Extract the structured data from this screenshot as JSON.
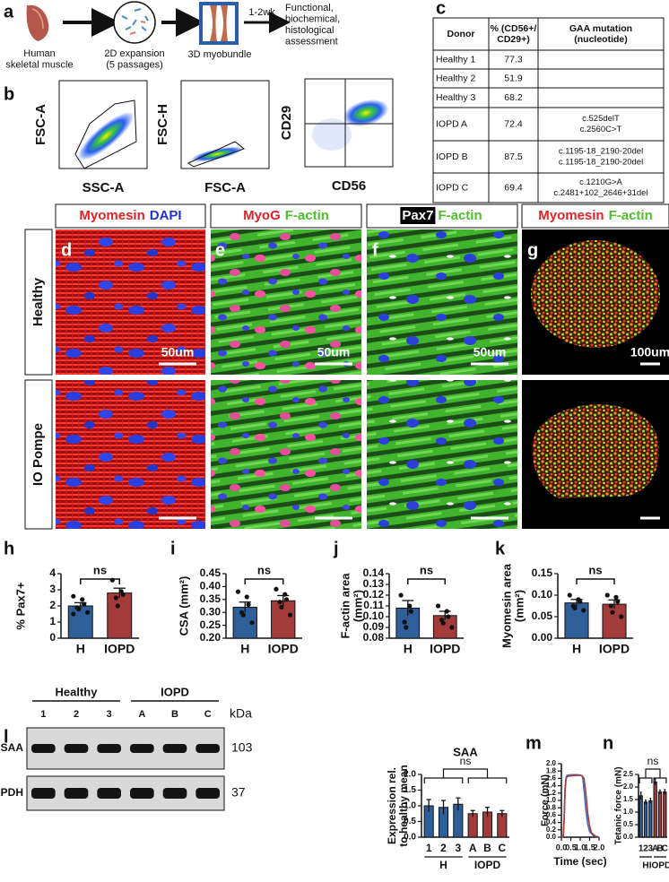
{
  "panel_labels": [
    "a",
    "b",
    "c",
    "d",
    "e",
    "f",
    "g",
    "h",
    "i",
    "j",
    "k",
    "l",
    "m",
    "n"
  ],
  "workflow": {
    "steps": [
      [
        "Human",
        "skeletal muscle"
      ],
      [
        "2D expansion",
        "(5 passages)"
      ],
      [
        "3D myobundle"
      ],
      [
        "Functional,",
        "biochemical,",
        "histological",
        "assessment"
      ]
    ],
    "duration": "1-2wk"
  },
  "flow_cytometry": [
    {
      "x_label": "SSC-A",
      "y_label": "FSC-A"
    },
    {
      "x_label": "FSC-A",
      "y_label": "FSC-H"
    },
    {
      "x_label": "CD56",
      "y_label": "CD29"
    }
  ],
  "table": {
    "header": [
      [
        "Donor"
      ],
      [
        "% (CD56+/",
        "CD29+)"
      ],
      [
        "GAA mutation",
        "(nucleotide)"
      ]
    ],
    "rows": [
      [
        "Healthy 1",
        77.3
      ],
      [
        "Healthy 2",
        51.9
      ],
      [
        "Healthy 3",
        68.2
      ],
      [
        "IOPD A",
        72.4,
        [
          "c.525delT",
          "c.2560C>T"
        ]
      ],
      [
        "IOPD B",
        87.5,
        [
          "c.1195-18_2190-20del",
          "c.1195-18_2190-20del"
        ]
      ],
      [
        "IOPD C",
        69.4,
        [
          "c.1210G>A",
          "c.2481+102_2646+31del"
        ]
      ]
    ]
  },
  "stains": [
    [
      {
        "text": "Myomesin",
        "color": "#e32228"
      },
      {
        "text": "DAPI",
        "color": "#2233d6"
      }
    ],
    [
      {
        "text": "MyoG",
        "color": "#e32228"
      },
      {
        "text": "F-actin",
        "color": "#4fc12a"
      }
    ],
    [
      {
        "text": "Pax7",
        "color": "#ffffff",
        "background": "#000000"
      },
      {
        "text": "F-actin",
        "color": "#4fc12a"
      }
    ],
    [
      {
        "text": "Myomesin",
        "color": "#e32228"
      },
      {
        "text": "F-actin",
        "color": "#4fc12a"
      }
    ]
  ],
  "conditions": [
    "Healthy",
    "IO Pompe"
  ],
  "scale_bars": [
    "50um",
    "50um",
    "50um",
    "100um"
  ],
  "western_blot": {
    "groups": [
      {
        "name": "Healthy",
        "lanes": [
          "1",
          "2",
          "3"
        ]
      },
      {
        "name": "IOPD",
        "lanes": [
          "A",
          "B",
          "C"
        ]
      }
    ],
    "unit": "kDa",
    "bands": [
      {
        "name": "SAA",
        "kda": 103
      },
      {
        "name": "GAPDH",
        "kda": 37
      }
    ]
  },
  "chart_data": [
    {
      "type": "bar",
      "y_label": [
        "% Pax7+"
      ],
      "categories": [
        "H",
        "IOPD"
      ],
      "colors": [
        "#2f5f98",
        "#a33b3b"
      ],
      "values": [
        2.0,
        2.8
      ],
      "errors": [
        0.2,
        0.3
      ],
      "points": [
        [
          2.6,
          2.4,
          2.1,
          1.9,
          1.8,
          1.6,
          1.5
        ],
        [
          3.6,
          2.9,
          2.7,
          2.5,
          2.0
        ]
      ],
      "ylim": [
        0,
        4
      ],
      "yticks": [
        0,
        1,
        2,
        3,
        4
      ],
      "annotation": "ns"
    },
    {
      "type": "bar",
      "y_label": [
        "CSA (mm²)"
      ],
      "categories": [
        "H",
        "IOPD"
      ],
      "colors": [
        "#2f5f98",
        "#a33b3b"
      ],
      "values": [
        0.32,
        0.345
      ],
      "errors": [
        0.02,
        0.02
      ],
      "points": [
        [
          0.38,
          0.36,
          0.33,
          0.3,
          0.29,
          0.26
        ],
        [
          0.39,
          0.37,
          0.35,
          0.34,
          0.32,
          0.29
        ]
      ],
      "ylim": [
        0.2,
        0.45
      ],
      "yticks": [
        {
          "value": 0.2,
          "label": "0.20"
        },
        0.25,
        {
          "value": 0.3,
          "label": "0.30"
        },
        0.35,
        {
          "value": 0.4,
          "label": "0.40"
        },
        0.45
      ],
      "annotation": "ns"
    },
    {
      "type": "bar",
      "y_label": [
        "F-actin area",
        "(mm²)"
      ],
      "categories": [
        "H",
        "IOPD"
      ],
      "colors": [
        "#2f5f98",
        "#a33b3b"
      ],
      "values": [
        0.108,
        0.101
      ],
      "errors": [
        0.007,
        0.004
      ],
      "points": [
        [
          0.12,
          0.11,
          0.105,
          0.095,
          0.09
        ],
        [
          0.11,
          0.105,
          0.1,
          0.097,
          0.094,
          0.09
        ]
      ],
      "ylim": [
        0.08,
        0.14
      ],
      "yticks": [
        0.08,
        0.09,
        {
          "value": 0.1,
          "label": "0.10"
        },
        0.11,
        0.12,
        0.13,
        0.14
      ],
      "annotation": "ns"
    },
    {
      "type": "bar",
      "y_label": [
        "Myomesin area",
        "(mm²)"
      ],
      "categories": [
        "H",
        "IOPD"
      ],
      "colors": [
        "#2f5f98",
        "#a33b3b"
      ],
      "values": [
        0.082,
        0.079
      ],
      "errors": [
        0.008,
        0.01
      ],
      "points": [
        [
          0.1,
          0.09,
          0.085,
          0.075,
          0.07,
          0.065
        ],
        [
          0.1,
          0.095,
          0.085,
          0.075,
          0.06,
          0.05
        ]
      ],
      "ylim": [
        0,
        0.15
      ],
      "yticks": [
        {
          "value": 0,
          "label": "0.00"
        },
        0.05,
        {
          "value": 0.1,
          "label": "0.10"
        },
        0.15
      ],
      "annotation": "ns"
    },
    {
      "type": "bar",
      "title": "SAA",
      "y_label": [
        "Expression rel.",
        "to healthy mean"
      ],
      "groups": [
        {
          "name": "H",
          "color": "#2f5f98",
          "categories": [
            "1",
            "2",
            "3"
          ]
        },
        {
          "name": "IOPD",
          "color": "#a33b3b",
          "categories": [
            "A",
            "B",
            "C"
          ]
        }
      ],
      "values": [
        1.0,
        0.95,
        1.05,
        0.75,
        0.8,
        0.75
      ],
      "errors": [
        0.2,
        0.22,
        0.2,
        0.1,
        0.15,
        0.1
      ],
      "ylim": [
        0,
        2
      ],
      "yticks": [
        {
          "value": 0,
          "label": "0.0"
        },
        0.5,
        {
          "value": 1,
          "label": "1.0"
        },
        1.5,
        {
          "value": 2,
          "label": "2.0"
        }
      ],
      "annotation": "ns"
    },
    {
      "type": "line",
      "x_label": "Time (sec)",
      "y_label": [
        "Force (mN)"
      ],
      "series": [
        {
          "color": "#3b6fc4",
          "x": [
            0,
            0.1,
            0.15,
            0.2,
            0.25,
            0.3,
            0.5,
            0.8,
            1.0,
            1.1,
            1.15,
            1.2,
            1.3,
            1.4,
            1.5,
            1.7,
            2.0
          ],
          "values": [
            0,
            0.02,
            0.6,
            1.4,
            1.62,
            1.68,
            1.7,
            1.7,
            1.69,
            1.67,
            1.55,
            1.3,
            0.75,
            0.35,
            0.15,
            0.04,
            0
          ]
        },
        {
          "color": "#b03a3a",
          "x": [
            0,
            0.1,
            0.15,
            0.2,
            0.25,
            0.3,
            0.5,
            0.8,
            1.0,
            1.1,
            1.2,
            1.3,
            1.4,
            1.5,
            1.6,
            1.8,
            2.0
          ],
          "values": [
            0,
            0.02,
            0.5,
            1.3,
            1.58,
            1.65,
            1.67,
            1.68,
            1.68,
            1.67,
            1.6,
            1.2,
            0.65,
            0.3,
            0.12,
            0.03,
            0
          ]
        }
      ],
      "xlim": [
        0,
        2
      ],
      "xticks": [
        {
          "value": 0,
          "label": "0.0"
        },
        0.5,
        {
          "value": 1,
          "label": "1.0"
        },
        1.5,
        {
          "value": 2,
          "label": "2.0"
        }
      ],
      "ylim": [
        0,
        2
      ],
      "yticks": [
        {
          "value": 0,
          "label": "0.0"
        },
        0.2,
        0.4,
        0.6,
        0.8,
        {
          "value": 1,
          "label": "1.0"
        },
        1.2,
        1.4,
        1.6,
        1.8,
        {
          "value": 2,
          "label": "2.0"
        }
      ]
    },
    {
      "type": "bar",
      "y_label": [
        "Tetanic force (mN)"
      ],
      "groups": [
        {
          "name": "H",
          "color": "#2f5f98",
          "categories": [
            "1",
            "2",
            "3"
          ]
        },
        {
          "name": "IOPD",
          "color": "#a33b3b",
          "categories": [
            "A",
            "B",
            "C"
          ]
        }
      ],
      "values": [
        1.65,
        1.4,
        1.45,
        2.2,
        1.8,
        1.8
      ],
      "errors": [
        0.15,
        0.08,
        0.1,
        0.12,
        0.08,
        0.1
      ],
      "ylim": [
        0,
        2.5
      ],
      "yticks": [
        {
          "value": 0,
          "label": "0.0"
        },
        0.5,
        {
          "value": 1,
          "label": "1.0"
        },
        1.5,
        {
          "value": 2,
          "label": "2.0"
        },
        2.5
      ],
      "annotation": "ns"
    }
  ]
}
